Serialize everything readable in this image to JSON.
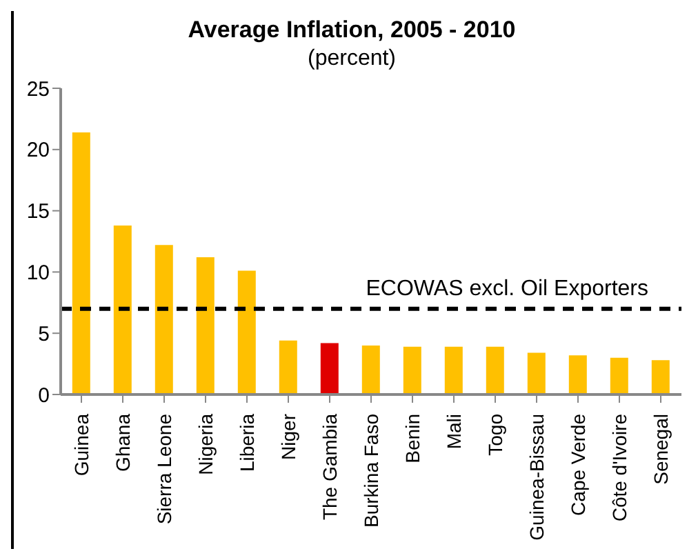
{
  "chart_data": {
    "type": "bar",
    "title": "Average Inflation,  2005 - 2010",
    "subtitle": "(percent)",
    "categories": [
      "Guinea",
      "Ghana",
      "Sierra Leone",
      "Nigeria",
      "Liberia",
      "Niger",
      "The Gambia",
      "Burkina Faso",
      "Benin",
      "Mali",
      "Togo",
      "Guinea-Bissau",
      "Cape Verde",
      "Côte d'Ivoire",
      "Senegal"
    ],
    "values": [
      21.4,
      13.8,
      12.2,
      11.2,
      10.1,
      4.4,
      4.2,
      4.0,
      3.9,
      3.9,
      3.9,
      3.4,
      3.2,
      3.0,
      2.8
    ],
    "colors": [
      "#ffc000",
      "#ffc000",
      "#ffc000",
      "#ffc000",
      "#ffc000",
      "#ffc000",
      "#e00000",
      "#ffc000",
      "#ffc000",
      "#ffc000",
      "#ffc000",
      "#ffc000",
      "#ffc000",
      "#ffc000",
      "#ffc000"
    ],
    "ylim": [
      0,
      25
    ],
    "yticks": [
      0,
      5,
      10,
      15,
      20,
      25
    ],
    "ref_lines": [
      {
        "axis": "y",
        "value": 7.0,
        "label": "ECOWAS excl. Oil Exporters",
        "color": "#000000",
        "line_style": "dashed"
      }
    ]
  }
}
